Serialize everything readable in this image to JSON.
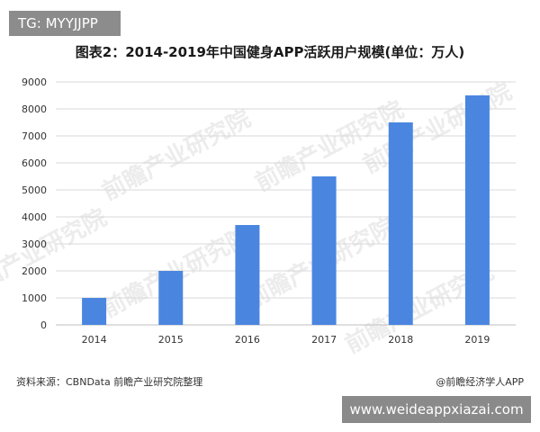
{
  "tag": "TG: MYYJJPP",
  "site": "www.weideappxiazai.com",
  "source": "资料来源：CBNData 前瞻产业研究院整理",
  "credit": "@前瞻经济学人APP",
  "watermark_text": "前瞻产业研究院",
  "colors": {
    "bar": "#4a86e0",
    "grid": "#d9d9d9",
    "axis": "#bfbfbf",
    "text": "#333333"
  },
  "chart_data": {
    "type": "bar",
    "title": "图表2：2014-2019年中国健身APP活跃用户规模(单位：万人)",
    "xlabel": "",
    "ylabel": "",
    "categories": [
      "2014",
      "2015",
      "2016",
      "2017",
      "2018",
      "2019"
    ],
    "values": [
      1000,
      2000,
      3700,
      5500,
      7500,
      8500
    ],
    "ylim": [
      0,
      9000
    ],
    "yticks": [
      0,
      1000,
      2000,
      3000,
      4000,
      5000,
      6000,
      7000,
      8000,
      9000
    ],
    "grid": true,
    "legend": "none"
  }
}
